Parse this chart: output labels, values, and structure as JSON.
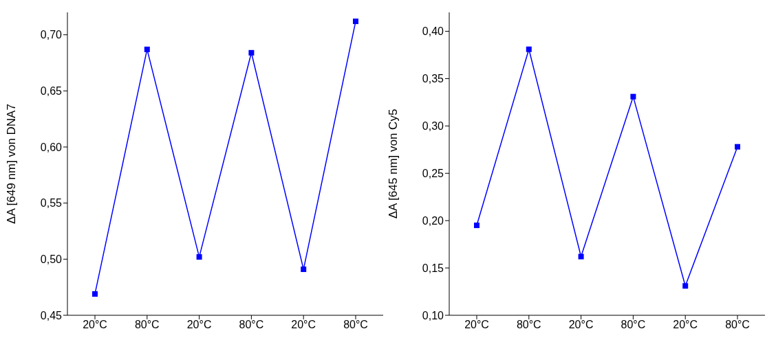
{
  "chart_data": [
    {
      "type": "line",
      "ylabel": "ΔA [649 nm] von DNA7",
      "categories": [
        "20°C",
        "80°C",
        "20°C",
        "80°C",
        "20°C",
        "80°C"
      ],
      "series": [
        {
          "color": "#0000ff",
          "values": [
            0.469,
            0.687,
            0.502,
            0.684,
            0.491,
            0.712
          ]
        }
      ],
      "ylim": [
        0.45,
        0.72
      ],
      "yticks": [
        {
          "value": 0.45,
          "label": "0,45"
        },
        {
          "value": 0.5,
          "label": "0,50"
        },
        {
          "value": 0.55,
          "label": "0,55"
        },
        {
          "value": 0.6,
          "label": "0,60"
        },
        {
          "value": 0.65,
          "label": "0,65"
        },
        {
          "value": 0.7,
          "label": "0,70"
        }
      ],
      "marker": "square",
      "grid": false,
      "legend": false
    },
    {
      "type": "line",
      "ylabel": "ΔA [645 nm] von Cy5",
      "categories": [
        "20°C",
        "80°C",
        "20°C",
        "80°C",
        "20°C",
        "80°C"
      ],
      "series": [
        {
          "color": "#0000ff",
          "values": [
            0.195,
            0.381,
            0.162,
            0.331,
            0.131,
            0.278
          ]
        }
      ],
      "ylim": [
        0.1,
        0.42
      ],
      "yticks": [
        {
          "value": 0.1,
          "label": "0,10"
        },
        {
          "value": 0.15,
          "label": "0,15"
        },
        {
          "value": 0.2,
          "label": "0,20"
        },
        {
          "value": 0.25,
          "label": "0,25"
        },
        {
          "value": 0.3,
          "label": "0,30"
        },
        {
          "value": 0.35,
          "label": "0,35"
        },
        {
          "value": 0.4,
          "label": "0,40"
        }
      ],
      "marker": "square",
      "grid": false,
      "legend": false
    }
  ]
}
